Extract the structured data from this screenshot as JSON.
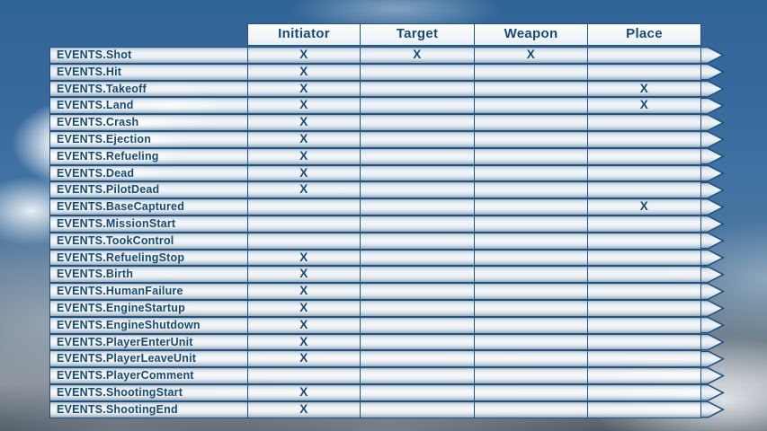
{
  "table": {
    "columns": [
      "Initiator",
      "Target",
      "Weapon",
      "Place"
    ],
    "mark_glyph": "X",
    "rows": [
      {
        "label": "EVENTS.Shot",
        "marks": [
          true,
          true,
          true,
          false
        ]
      },
      {
        "label": "EVENTS.Hit",
        "marks": [
          true,
          false,
          false,
          false
        ]
      },
      {
        "label": "EVENTS.Takeoff",
        "marks": [
          true,
          false,
          false,
          true
        ]
      },
      {
        "label": "EVENTS.Land",
        "marks": [
          true,
          false,
          false,
          true
        ]
      },
      {
        "label": "EVENTS.Crash",
        "marks": [
          true,
          false,
          false,
          false
        ]
      },
      {
        "label": "EVENTS.Ejection",
        "marks": [
          true,
          false,
          false,
          false
        ]
      },
      {
        "label": "EVENTS.Refueling",
        "marks": [
          true,
          false,
          false,
          false
        ]
      },
      {
        "label": "EVENTS.Dead",
        "marks": [
          true,
          false,
          false,
          false
        ]
      },
      {
        "label": "EVENTS.PilotDead",
        "marks": [
          true,
          false,
          false,
          false
        ]
      },
      {
        "label": "EVENTS.BaseCaptured",
        "marks": [
          false,
          false,
          false,
          true
        ]
      },
      {
        "label": "EVENTS.MissionStart",
        "marks": [
          false,
          false,
          false,
          false
        ]
      },
      {
        "label": "EVENTS.TookControl",
        "marks": [
          false,
          false,
          false,
          false
        ]
      },
      {
        "label": "EVENTS.RefuelingStop",
        "marks": [
          true,
          false,
          false,
          false
        ]
      },
      {
        "label": "EVENTS.Birth",
        "marks": [
          true,
          false,
          false,
          false
        ]
      },
      {
        "label": "EVENTS.HumanFailure",
        "marks": [
          true,
          false,
          false,
          false
        ]
      },
      {
        "label": "EVENTS.EngineStartup",
        "marks": [
          true,
          false,
          false,
          false
        ]
      },
      {
        "label": "EVENTS.EngineShutdown",
        "marks": [
          true,
          false,
          false,
          false
        ]
      },
      {
        "label": "EVENTS.PlayerEnterUnit",
        "marks": [
          true,
          false,
          false,
          false
        ]
      },
      {
        "label": "EVENTS.PlayerLeaveUnit",
        "marks": [
          true,
          false,
          false,
          false
        ]
      },
      {
        "label": "EVENTS.PlayerComment",
        "marks": [
          false,
          false,
          false,
          false
        ]
      },
      {
        "label": "EVENTS.ShootingStart",
        "marks": [
          true,
          false,
          false,
          false
        ]
      },
      {
        "label": "EVENTS.ShootingEnd",
        "marks": [
          true,
          false,
          false,
          false
        ]
      }
    ]
  },
  "colors": {
    "line_navy": "#20537f",
    "text_navy": "#174a73",
    "sky_blue": "#3a6d9f",
    "cloud_gray": "#75838f"
  }
}
